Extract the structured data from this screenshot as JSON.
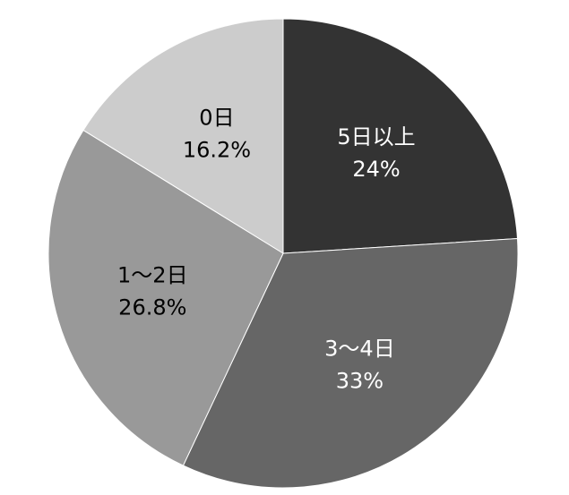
{
  "chart_data": {
    "type": "pie",
    "categories": [
      "5日以上",
      "3～4日",
      "1～2日",
      "0日"
    ],
    "values": [
      24,
      33,
      26.8,
      16.2
    ],
    "value_labels": [
      "24%",
      "33%",
      "26.8%",
      "16.2%"
    ],
    "colors": [
      "#333333",
      "#666666",
      "#999999",
      "#cccccc"
    ]
  }
}
